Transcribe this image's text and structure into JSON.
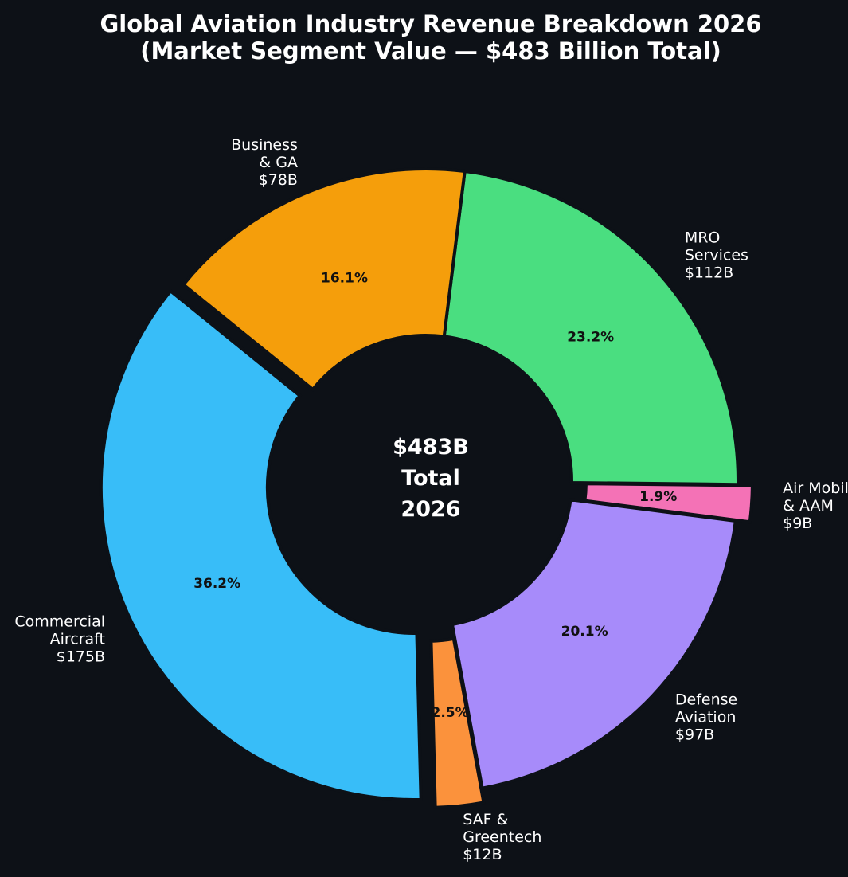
{
  "chart_data": {
    "type": "pie",
    "title": [
      "Global Aviation Industry Revenue Breakdown 2026",
      "(Market Segment Value — $483 Billion Total)"
    ],
    "center_label": [
      "$483B",
      "Total",
      "2026"
    ],
    "slices": [
      {
        "key": "commercial-aircraft",
        "label_lines": [
          "Commercial",
          "Aircraft",
          "$175B"
        ],
        "value": 175,
        "percent_label": "36.2%",
        "color": "#38bdf8",
        "exploded": true
      },
      {
        "key": "saf-greentech",
        "label_lines": [
          "SAF &",
          "Greentech",
          "$12B"
        ],
        "value": 12,
        "percent_label": "2.5%",
        "color": "#fb923c",
        "exploded": true
      },
      {
        "key": "defense-aviation",
        "label_lines": [
          "Defense",
          "Aviation",
          "$97B"
        ],
        "value": 97,
        "percent_label": "20.1%",
        "color": "#a78bfa",
        "exploded": false
      },
      {
        "key": "air-mobility-aam",
        "label_lines": [
          "Air Mobility",
          "& AAM",
          "$9B"
        ],
        "value": 9,
        "percent_label": "1.9%",
        "color": "#f472b6",
        "exploded": true
      },
      {
        "key": "mro-services",
        "label_lines": [
          "MRO",
          "Services",
          "$112B"
        ],
        "value": 112,
        "percent_label": "23.2%",
        "color": "#4ade80",
        "exploded": false
      },
      {
        "key": "business-ga",
        "label_lines": [
          "Business",
          "& GA",
          "$78B"
        ],
        "value": 78,
        "percent_label": "16.1%",
        "color": "#f59e0b",
        "exploded": false
      }
    ]
  }
}
